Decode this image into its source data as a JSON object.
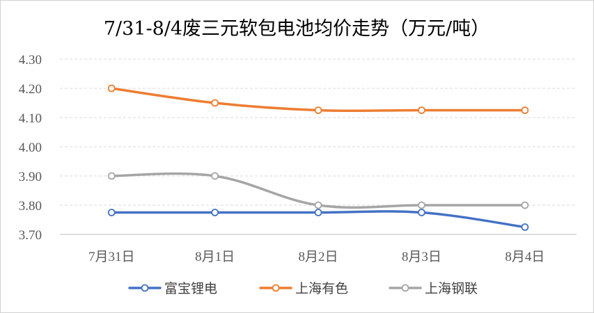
{
  "chart_data": {
    "type": "line",
    "title": "7/31-8/4废三元软包电池均价走势（万元/吨）",
    "categories": [
      "7月31日",
      "8月1日",
      "8月2日",
      "8月3日",
      "8月4日"
    ],
    "y_ticks": [
      "3.70",
      "3.80",
      "3.90",
      "4.00",
      "4.10",
      "4.20",
      "4.30"
    ],
    "ylim": [
      3.7,
      4.3
    ],
    "grid": true,
    "legend_position": "bottom",
    "series": [
      {
        "name": "富宝锂电",
        "color": "#4472C4",
        "values": [
          3.775,
          3.775,
          3.775,
          3.775,
          3.725
        ]
      },
      {
        "name": "上海有色",
        "color": "#ED7D31",
        "values": [
          4.2,
          4.15,
          4.125,
          4.125,
          4.125
        ]
      },
      {
        "name": "上海钢联",
        "color": "#A5A5A5",
        "values": [
          3.9,
          3.9,
          3.8,
          3.8,
          3.8
        ]
      }
    ]
  }
}
